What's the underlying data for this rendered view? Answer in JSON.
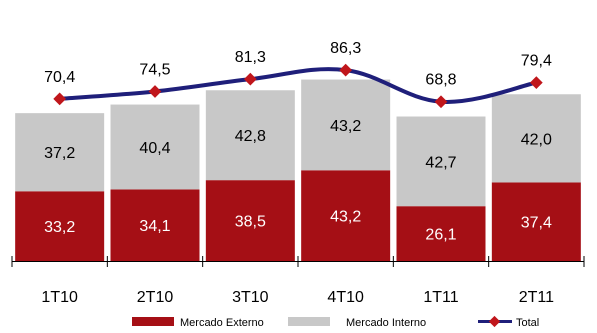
{
  "chart_data": {
    "type": "bar",
    "stacked": true,
    "categories": [
      "1T10",
      "2T10",
      "3T10",
      "4T10",
      "1T11",
      "2T11"
    ],
    "series": [
      {
        "name": "Mercado Externo",
        "values": [
          33.2,
          34.1,
          38.5,
          43.2,
          26.1,
          37.4
        ]
      },
      {
        "name": "Mercado Interno",
        "values": [
          37.2,
          40.4,
          42.8,
          43.2,
          42.7,
          42.0
        ]
      }
    ],
    "line_series": {
      "name": "Total",
      "values": [
        70.4,
        74.5,
        81.3,
        86.3,
        68.8,
        79.4
      ]
    },
    "value_labels": {
      "externo": [
        "33,2",
        "34,1",
        "38,5",
        "43,2",
        "26,1",
        "37,4"
      ],
      "interno": [
        "37,2",
        "40,4",
        "42,8",
        "43,2",
        "42,7",
        "42,0"
      ],
      "total": [
        "70,4",
        "74,5",
        "81,3",
        "86,3",
        "68,8",
        "79,4"
      ]
    },
    "legend": [
      "Mercado Externo",
      "Mercado Interno",
      "Total"
    ],
    "legend_position": "bottom",
    "grid": false,
    "ylim": [
      0,
      100
    ],
    "colors": {
      "externo": "#A50F15",
      "interno": "#C8C8C8",
      "total_line": "#1F1F7A",
      "total_marker": "#C0161B"
    }
  }
}
